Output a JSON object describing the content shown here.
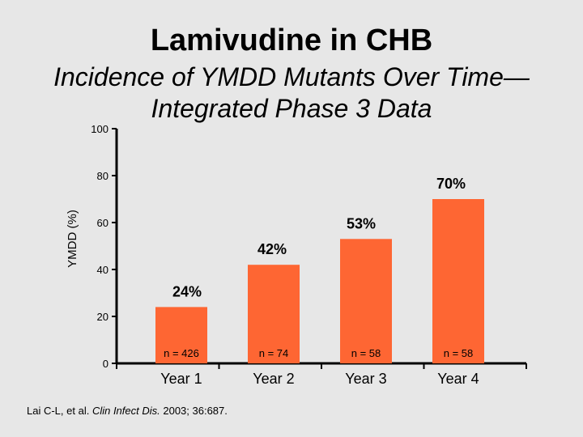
{
  "slide": {
    "title": "Lamivudine in CHB",
    "subtitle_line1": "Incidence of YMDD Mutants Over Time—",
    "subtitle_line2": "Integrated Phase 3 Data",
    "source_authors": "Lai C-L, et al. ",
    "source_journal": "Clin Infect Dis.",
    "source_rest": " 2003; 36:687."
  },
  "colors": {
    "bar": "#fe6633",
    "background": "#e7e7e7",
    "axis": "#000000"
  },
  "chart_data": {
    "type": "bar",
    "categories": [
      "Year 1",
      "Year 2",
      "Year 3",
      "Year 4"
    ],
    "values": [
      24,
      42,
      53,
      70
    ],
    "value_labels": [
      "24%",
      "42%",
      "53%",
      "70%"
    ],
    "n_labels": [
      "n = 426",
      "n = 74",
      "n = 58",
      "n = 58"
    ],
    "ylabel": "YMDD (%)",
    "ylim": [
      0,
      100
    ],
    "yticks": [
      0,
      20,
      40,
      60,
      80,
      100
    ],
    "grid": false,
    "legend": "none"
  }
}
